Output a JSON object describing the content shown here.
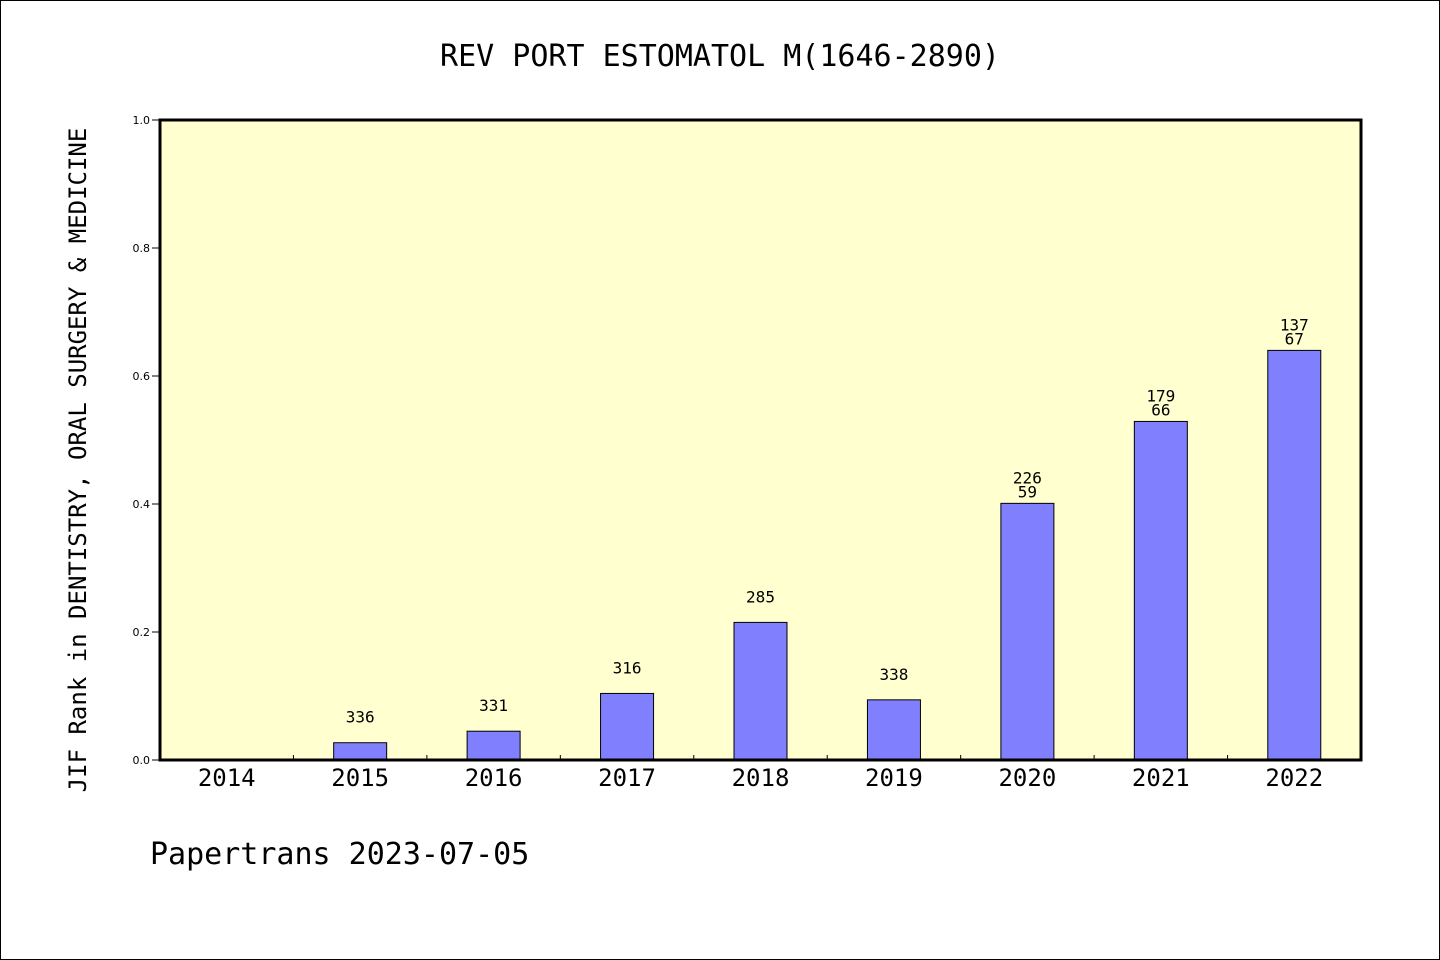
{
  "footer": "Papertrans 2023-07-05",
  "chart_data": {
    "type": "bar",
    "title": "REV PORT ESTOMATOL M(1646-2890)",
    "xlabel": "",
    "ylabel": "JIF Rank in DENTISTRY, ORAL SURGERY & MEDICINE",
    "ylim": [
      0,
      1.0
    ],
    "yticks": [
      "0.0",
      "0.2",
      "0.4",
      "0.6",
      "0.8",
      "1.0"
    ],
    "grid": false,
    "colors": {
      "plot_background": "#ffffd0",
      "bar": "#8080ff"
    },
    "categories": [
      "2014",
      "2015",
      "2016",
      "2017",
      "2018",
      "2019",
      "2020",
      "2021",
      "2022"
    ],
    "values": [
      null,
      0.027,
      0.045,
      0.104,
      0.215,
      0.094,
      0.401,
      0.529,
      0.64
    ],
    "bar_labels": [
      [],
      [
        "336"
      ],
      [
        "331"
      ],
      [
        "316"
      ],
      [
        "285"
      ],
      [
        "338"
      ],
      [
        "226",
        "59"
      ],
      [
        "179",
        "66"
      ],
      [
        "137",
        "67"
      ]
    ]
  }
}
